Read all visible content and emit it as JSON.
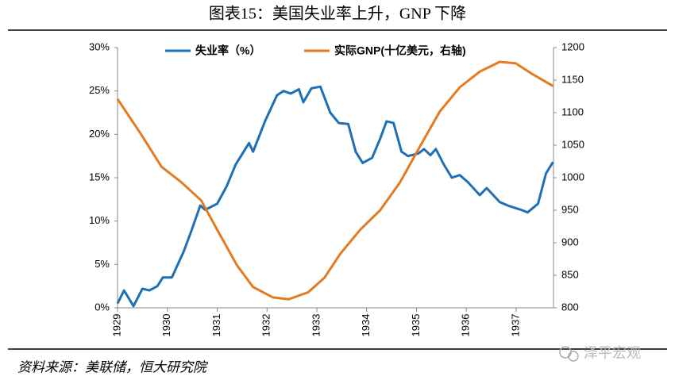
{
  "chart_data": {
    "type": "line",
    "title": "图表15：美国失业率上升，GNP 下降",
    "source": "资料来源：美联储，恒大研究院",
    "watermark": "泽平宏观",
    "xlim": [
      1929,
      1937.75
    ],
    "xticks": [
      1929,
      1930,
      1931,
      1932,
      1933,
      1934,
      1935,
      1936,
      1937
    ],
    "ylim": [
      0,
      30
    ],
    "yticks": [
      {
        "value": 0,
        "label": "0%"
      },
      {
        "value": 5,
        "label": "5%"
      },
      {
        "value": 10,
        "label": "10%"
      },
      {
        "value": 15,
        "label": "15%"
      },
      {
        "value": 20,
        "label": "20%"
      },
      {
        "value": 25,
        "label": "25%"
      },
      {
        "value": 30,
        "label": "30%"
      }
    ],
    "y2lim": [
      800,
      1200
    ],
    "y2ticks": [
      800,
      850,
      900,
      950,
      1000,
      1050,
      1100,
      1150,
      1200
    ],
    "legend": "top",
    "series": [
      {
        "name": "失业率（%）",
        "color": "#1f6fb4",
        "axis": "y",
        "x": [
          1929.0,
          1929.13,
          1929.32,
          1929.5,
          1929.64,
          1929.8,
          1929.91,
          1930.09,
          1930.33,
          1930.49,
          1930.66,
          1930.76,
          1931.0,
          1931.19,
          1931.37,
          1931.64,
          1931.72,
          1931.96,
          1932.2,
          1932.33,
          1932.48,
          1932.64,
          1932.73,
          1932.89,
          1933.07,
          1933.27,
          1933.44,
          1933.63,
          1933.78,
          1933.92,
          1934.11,
          1934.27,
          1934.4,
          1934.54,
          1934.7,
          1934.83,
          1935.04,
          1935.15,
          1935.28,
          1935.39,
          1935.55,
          1935.71,
          1935.87,
          1936.03,
          1936.27,
          1936.41,
          1936.67,
          1936.83,
          1936.99,
          1937.1,
          1937.23,
          1937.44,
          1937.6,
          1937.74
        ],
        "values": [
          0.5,
          2.0,
          0.2,
          2.2,
          2.0,
          2.5,
          3.5,
          3.5,
          6.5,
          9.0,
          11.8,
          11.3,
          12.0,
          14.0,
          16.5,
          19.0,
          18.0,
          21.5,
          24.5,
          25.0,
          24.7,
          25.2,
          23.7,
          25.3,
          25.5,
          22.5,
          21.3,
          21.2,
          18.0,
          16.7,
          17.3,
          19.5,
          21.5,
          21.3,
          18.0,
          17.5,
          17.8,
          18.3,
          17.6,
          18.3,
          16.5,
          15.0,
          15.3,
          14.5,
          13.0,
          13.8,
          12.2,
          11.8,
          11.5,
          11.3,
          11.0,
          12.0,
          15.5,
          16.8
        ]
      },
      {
        "name": "实际GNP(十亿美元，右轴)",
        "color": "#e37b22",
        "axis": "y2",
        "x": [
          1929.0,
          1929.48,
          1929.88,
          1930.28,
          1930.68,
          1931.0,
          1931.4,
          1931.72,
          1932.12,
          1932.43,
          1932.83,
          1933.15,
          1933.47,
          1933.87,
          1934.27,
          1934.67,
          1935.07,
          1935.47,
          1935.87,
          1936.27,
          1936.67,
          1936.99,
          1937.31,
          1937.74
        ],
        "values": [
          1121,
          1066,
          1017,
          993,
          965,
          920,
          865,
          832,
          816,
          813,
          824,
          846,
          883,
          920,
          950,
          993,
          1048,
          1102,
          1139,
          1163,
          1178,
          1176,
          1160,
          1141
        ]
      }
    ]
  }
}
